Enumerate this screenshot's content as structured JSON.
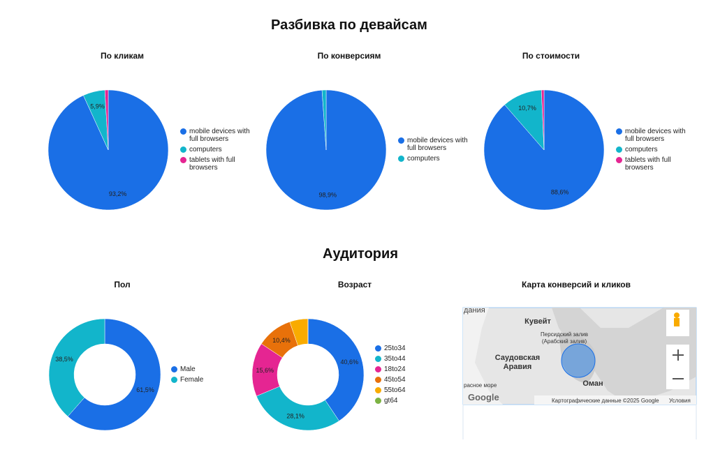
{
  "sections": [
    {
      "title": "Разбивка по девайсам"
    },
    {
      "title": "Аудитория"
    }
  ],
  "chart_data": [
    {
      "type": "pie",
      "title": "По кликам",
      "categories": [
        "mobile devices with full browsers",
        "computers",
        "tablets with full browsers"
      ],
      "values": [
        93.2,
        5.9,
        0.9
      ],
      "value_labels": [
        "93,2%",
        "5,9%",
        null
      ],
      "colors": [
        "#1a6fe6",
        "#12b5cb",
        "#e52592"
      ]
    },
    {
      "type": "pie",
      "title": "По конверсиям",
      "categories": [
        "mobile devices with full browsers",
        "computers"
      ],
      "values": [
        98.9,
        1.1
      ],
      "value_labels": [
        "98,9%",
        null
      ],
      "colors": [
        "#1a6fe6",
        "#12b5cb"
      ]
    },
    {
      "type": "pie",
      "title": "По стоимости",
      "categories": [
        "mobile devices with full browsers",
        "computers",
        "tablets with full browsers"
      ],
      "values": [
        88.6,
        10.7,
        0.7
      ],
      "value_labels": [
        "88,6%",
        "10,7%",
        null
      ],
      "colors": [
        "#1a6fe6",
        "#12b5cb",
        "#e52592"
      ]
    },
    {
      "type": "donut",
      "title": "Пол",
      "categories": [
        "Male",
        "Female"
      ],
      "values": [
        61.5,
        38.5
      ],
      "value_labels": [
        "61,5%",
        "38,5%"
      ],
      "colors": [
        "#1a6fe6",
        "#12b5cb"
      ]
    },
    {
      "type": "donut",
      "title": "Возраст",
      "categories": [
        "25to34",
        "35to44",
        "18to24",
        "45to54",
        "55to64",
        "gt64"
      ],
      "values": [
        40.6,
        28.1,
        15.6,
        10.4,
        5.3,
        0
      ],
      "value_labels": [
        "40,6%",
        "28,1%",
        "15,6%",
        "10,4%",
        null,
        null
      ],
      "colors": [
        "#1a6fe6",
        "#12b5cb",
        "#e52592",
        "#e8710a",
        "#f9ab00",
        "#7cb342"
      ]
    }
  ],
  "map": {
    "title": "Карта конверсий и кликов",
    "labels": [
      "дания",
      "Кувейт",
      "Персидский залив",
      "(Арабский залив)",
      "Саудовская",
      "Аравия",
      "Оман",
      "расное море"
    ],
    "logo": "Google",
    "attribution": "Картографические данные ©2025 Google",
    "terms": "Условия"
  }
}
